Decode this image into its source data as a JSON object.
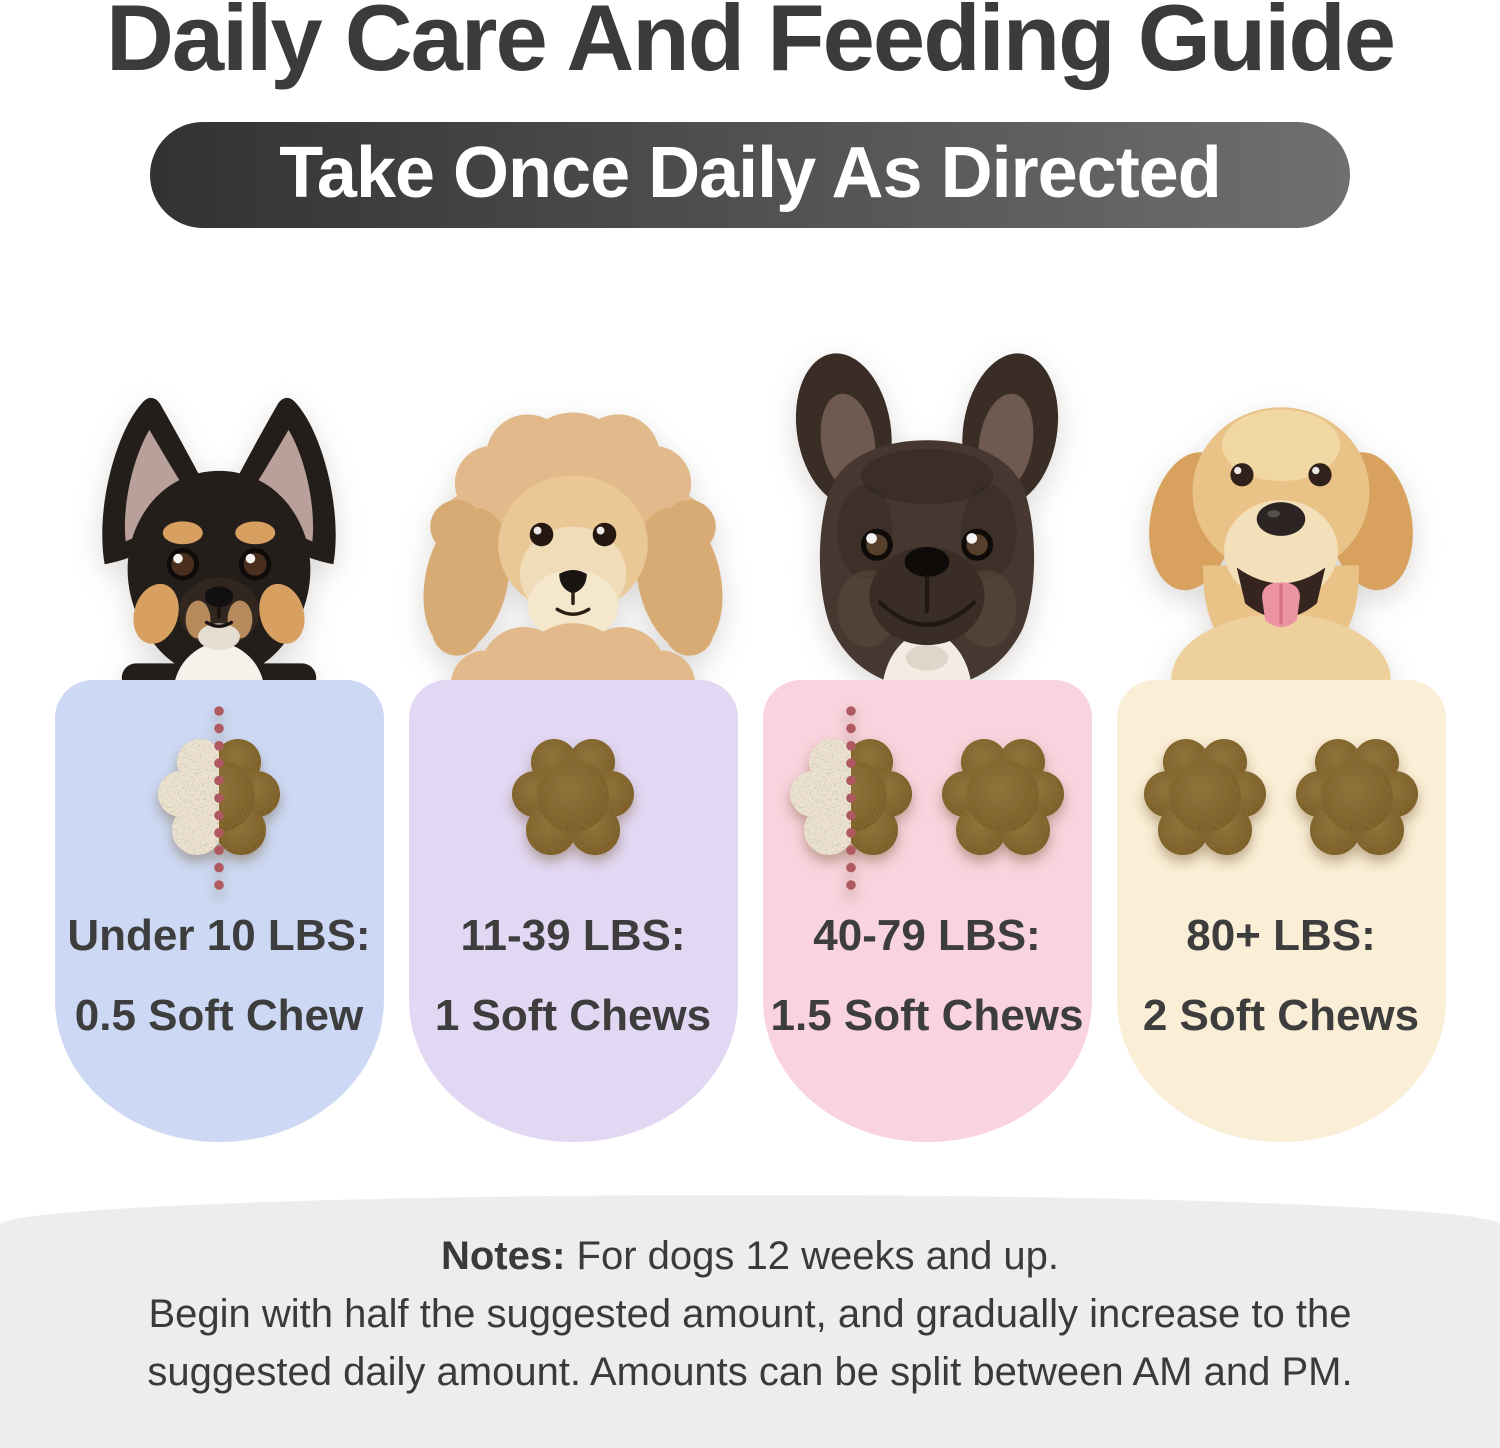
{
  "header": {
    "title": "Daily Care And Feeding Guide",
    "subtitle": "Take Once Daily As Directed"
  },
  "cards": [
    {
      "dog": "chihuahua",
      "weight_label": "Under 10 LBS:",
      "dose_label": "0.5 Soft Chew",
      "bg": "#cdd9f4",
      "half_chew": true,
      "full_chews": 0
    },
    {
      "dog": "poodle",
      "weight_label": "11-39 LBS:",
      "dose_label": "1 Soft Chews",
      "bg": "#e3d8f4",
      "half_chew": false,
      "full_chews": 1
    },
    {
      "dog": "french-bulldog",
      "weight_label": "40-79 LBS:",
      "dose_label": "1.5 Soft Chews",
      "bg": "#f9d3dd",
      "half_chew": true,
      "full_chews": 1
    },
    {
      "dog": "golden-retriever",
      "weight_label": "80+ LBS:",
      "dose_label": "2 Soft Chews",
      "bg": "#faeed6",
      "half_chew": false,
      "full_chews": 2
    }
  ],
  "notes": {
    "label": "Notes:",
    "line1": "For dogs 12 weeks and up.",
    "line2": "Begin with half the suggested amount, and gradually increase to the",
    "line3": "suggested daily amount. Amounts can be split between AM and PM."
  },
  "colors": {
    "title_text": "#3b3b3b",
    "banner_gradient_left": "#323232",
    "banner_gradient_right": "#6f6f6f",
    "banner_text": "#ffffff",
    "card_text": "#3d3d3d",
    "chew_brown_light": "#94753a",
    "chew_brown_dark": "#775920",
    "chew_cream": "#ece2cf",
    "dot_red": "#ae5a60",
    "notes_bg": "#ededed",
    "notes_text": "#3a3a3a"
  }
}
